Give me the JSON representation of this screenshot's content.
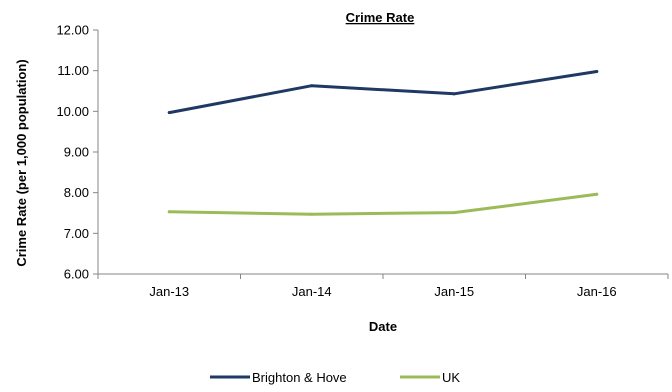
{
  "chart_data": {
    "type": "line",
    "title": "Crime Rate",
    "xlabel": "Date",
    "ylabel": "Crime Rate (per 1,000 population)",
    "categories": [
      "Jan-13",
      "Jan-14",
      "Jan-15",
      "Jan-16"
    ],
    "ylim": [
      6.0,
      12.0
    ],
    "yticks": [
      "6.00",
      "7.00",
      "8.00",
      "9.00",
      "10.00",
      "11.00",
      "12.00"
    ],
    "grid": false,
    "legend_position": "bottom",
    "series": [
      {
        "name": "Brighton & Hove",
        "color": "#1F3864",
        "values": [
          9.97,
          10.63,
          10.43,
          10.98
        ]
      },
      {
        "name": "UK",
        "color": "#9BBB59",
        "values": [
          7.53,
          7.47,
          7.51,
          7.96
        ]
      }
    ]
  }
}
